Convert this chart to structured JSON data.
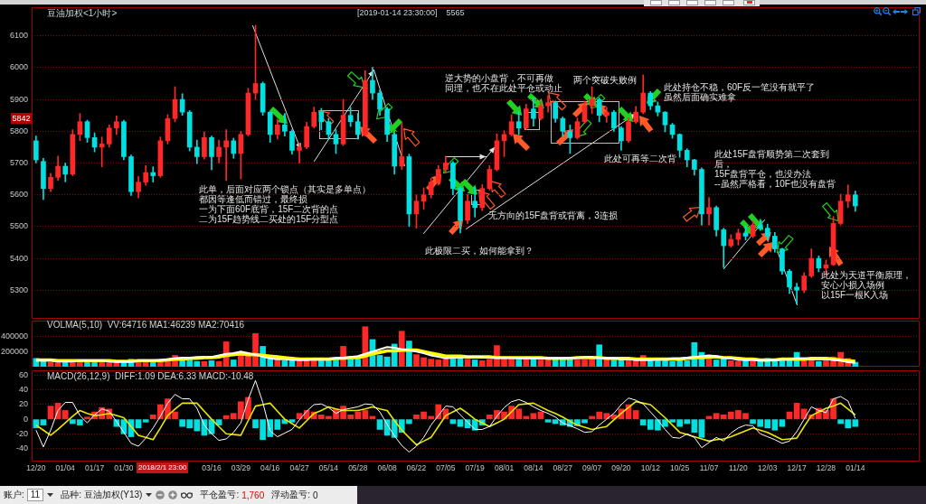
{
  "chart_data": [
    {
      "type": "candlestick",
      "title": "豆油加权<1小时>",
      "subtitle": "[2019-01-14 23:30:00]    5565",
      "categories": [
        null,
        null,
        null,
        null,
        null,
        null,
        null,
        null,
        null,
        null,
        null,
        null,
        null,
        null,
        null,
        null,
        null,
        null,
        null,
        null,
        null,
        null,
        null,
        null,
        null,
        null,
        null,
        null,
        null,
        null,
        null,
        null,
        null,
        null,
        null,
        null,
        null,
        null,
        null,
        null,
        null,
        null,
        null,
        null,
        null,
        null,
        null,
        null,
        null,
        null,
        null,
        null,
        null,
        null,
        null,
        null,
        null,
        null,
        null,
        null,
        null,
        null,
        null,
        null,
        null,
        null,
        null,
        null,
        null,
        null,
        null,
        null,
        null,
        null,
        null,
        null,
        null,
        null,
        null,
        null,
        null,
        null,
        null,
        null,
        null,
        null,
        null,
        null,
        null,
        null,
        null,
        null,
        null,
        null,
        null,
        null,
        null,
        null,
        null,
        null,
        null,
        null,
        null,
        null,
        null,
        null,
        null,
        null,
        null,
        null,
        null,
        null,
        null
      ],
      "ohlc": [
        [
          5770,
          5785,
          5700,
          5710
        ],
        [
          5705,
          5715,
          5585,
          5620
        ],
        [
          5620,
          5668,
          5610,
          5655
        ],
        [
          5655,
          5722,
          5645,
          5690
        ],
        [
          5690,
          5700,
          5641,
          5665
        ],
        [
          5665,
          5805,
          5660,
          5790
        ],
        [
          5790,
          5856,
          5770,
          5830
        ],
        [
          5830,
          5835,
          5765,
          5780
        ],
        [
          5780,
          5795,
          5735,
          5750
        ],
        [
          5750,
          5782,
          5688,
          5760
        ],
        [
          5760,
          5820,
          5750,
          5810
        ],
        [
          5810,
          5848,
          5790,
          5830
        ],
        [
          5830,
          5835,
          5710,
          5720
        ],
        [
          5720,
          5725,
          5598,
          5610
        ],
        [
          5610,
          5658,
          5590,
          5640
        ],
        [
          5640,
          5692,
          5630,
          5670
        ],
        [
          5670,
          5688,
          5640,
          5660
        ],
        [
          5660,
          5782,
          5655,
          5770
        ],
        [
          5770,
          5852,
          5760,
          5840
        ],
        [
          5840,
          5940,
          5830,
          5900
        ],
        [
          5900,
          5918,
          5850,
          5860
        ],
        [
          5860,
          5865,
          5738,
          5750
        ],
        [
          5750,
          5772,
          5698,
          5720
        ],
        [
          5720,
          5798,
          5712,
          5780
        ],
        [
          5780,
          5785,
          5679,
          5720
        ],
        [
          5720,
          5772,
          5700,
          5750
        ],
        [
          5750,
          5805,
          5645,
          5770
        ],
        [
          5770,
          5778,
          5715,
          5730
        ],
        [
          5730,
          5800,
          5650,
          5790
        ],
        [
          5790,
          5935,
          5785,
          5920
        ],
        [
          5920,
          6133,
          5900,
          5950
        ],
        [
          5950,
          5955,
          5850,
          5860
        ],
        [
          5860,
          5862,
          5765,
          5790
        ],
        [
          5790,
          5838,
          5775,
          5820
        ],
        [
          5820,
          5856,
          5785,
          5800
        ],
        [
          5800,
          5805,
          5728,
          5740
        ],
        [
          5740,
          5762,
          5700,
          5750
        ],
        [
          5750,
          5828,
          5745,
          5815
        ],
        [
          5815,
          5876,
          5810,
          5860
        ],
        [
          5860,
          5872,
          5805,
          5830
        ],
        [
          5830,
          5840,
          5775,
          5790
        ],
        [
          5790,
          5805,
          5730,
          5760
        ],
        [
          5760,
          5900,
          5755,
          5850
        ],
        [
          5850,
          5875,
          5815,
          5830
        ],
        [
          5830,
          5856,
          5775,
          5790
        ],
        [
          5790,
          5990,
          5785,
          5960
        ],
        [
          5960,
          6001,
          5900,
          5920
        ],
        [
          5920,
          5930,
          5850,
          5870
        ],
        [
          5870,
          5875,
          5768,
          5790
        ],
        [
          5790,
          5795,
          5665,
          5690
        ],
        [
          5690,
          5825,
          5680,
          5720
        ],
        [
          5720,
          5728,
          5500,
          5540
        ],
        [
          5540,
          5600,
          5495,
          5580
        ],
        [
          5580,
          5622,
          5555,
          5600
        ],
        [
          5600,
          5652,
          5590,
          5640
        ],
        [
          5640,
          5692,
          5630,
          5680
        ],
        [
          5680,
          5722,
          5670,
          5700
        ],
        [
          5700,
          5705,
          5600,
          5620
        ],
        [
          5620,
          5625,
          5480,
          5520
        ],
        [
          5520,
          5602,
          5510,
          5580
        ],
        [
          5580,
          5622,
          5530,
          5560
        ],
        [
          5560,
          5632,
          5550,
          5620
        ],
        [
          5620,
          5692,
          5615,
          5680
        ],
        [
          5680,
          5792,
          5675,
          5770
        ],
        [
          5770,
          5802,
          5720,
          5790
        ],
        [
          5790,
          5852,
          5785,
          5830
        ],
        [
          5830,
          5862,
          5790,
          5810
        ],
        [
          5810,
          5885,
          5805,
          5870
        ],
        [
          5870,
          5905,
          5816,
          5840
        ],
        [
          5840,
          5892,
          5835,
          5880
        ],
        [
          5880,
          5912,
          5860,
          5890
        ],
        [
          5890,
          5895,
          5828,
          5840
        ],
        [
          5840,
          5845,
          5785,
          5800
        ],
        [
          5800,
          5820,
          5730,
          5780
        ],
        [
          5780,
          5842,
          5775,
          5830
        ],
        [
          5830,
          5895,
          5825,
          5880
        ],
        [
          5880,
          5940,
          5855,
          5900
        ],
        [
          5900,
          5905,
          5830,
          5850
        ],
        [
          5850,
          5875,
          5828,
          5860
        ],
        [
          5860,
          5865,
          5800,
          5810
        ],
        [
          5810,
          5815,
          5740,
          5770
        ],
        [
          5770,
          5842,
          5765,
          5830
        ],
        [
          5830,
          5878,
          5825,
          5860
        ],
        [
          5860,
          5977,
          5855,
          5920
        ],
        [
          5920,
          5925,
          5868,
          5880
        ],
        [
          5880,
          5892,
          5848,
          5860
        ],
        [
          5860,
          5862,
          5798,
          5820
        ],
        [
          5820,
          5825,
          5778,
          5790
        ],
        [
          5790,
          5792,
          5718,
          5740
        ],
        [
          5740,
          5745,
          5688,
          5710
        ],
        [
          5710,
          5712,
          5662,
          5680
        ],
        [
          5680,
          5685,
          5505,
          5540
        ],
        [
          5540,
          5592,
          5505,
          5560
        ],
        [
          5560,
          5565,
          5470,
          5490
        ],
        [
          5490,
          5495,
          5371,
          5440
        ],
        [
          5440,
          5475,
          5435,
          5460
        ],
        [
          5460,
          5492,
          5442,
          5480
        ],
        [
          5480,
          5502,
          5458,
          5470
        ],
        [
          5470,
          5518,
          5465,
          5505
        ],
        [
          5505,
          5523,
          5488,
          5495
        ],
        [
          5495,
          5508,
          5458,
          5470
        ],
        [
          5470,
          5482,
          5420,
          5430
        ],
        [
          5430,
          5432,
          5350,
          5360
        ],
        [
          5360,
          5365,
          5290,
          5310
        ],
        [
          5310,
          5322,
          5257,
          5300
        ],
        [
          5300,
          5355,
          5292,
          5345
        ],
        [
          5345,
          5430,
          5340,
          5400
        ],
        [
          5400,
          5408,
          5358,
          5370
        ],
        [
          5370,
          5395,
          5348,
          5380
        ],
        [
          5380,
          5532,
          5378,
          5510
        ],
        [
          5510,
          5602,
          5505,
          5580
        ],
        [
          5580,
          5631,
          5560,
          5600
        ],
        [
          5600,
          5612,
          5548,
          5565
        ]
      ],
      "colors": [
        "#00e0e0",
        "#00e0e0",
        "#ff2828",
        "#ff2828",
        "#00e0e0",
        "#ff2828",
        "#ff2828",
        "#00e0e0",
        "#00e0e0",
        "#ff2828",
        "#ff2828",
        "#ff2828",
        "#00e0e0",
        "#00e0e0",
        "#ff2828",
        "#ff2828",
        "#00e0e0",
        "#ff2828",
        "#ff2828",
        "#ff2828",
        "#00e0e0",
        "#00e0e0",
        "#00e0e0",
        "#ff2828",
        "#00e0e0",
        "#ff2828",
        "#ff2828",
        "#00e0e0",
        "#ff2828",
        "#ff2828",
        "#ff2828",
        "#00e0e0",
        "#00e0e0",
        "#ff2828",
        "#00e0e0",
        "#00e0e0",
        "#ff2828",
        "#ff2828",
        "#ff2828",
        "#00e0e0",
        "#00e0e0",
        "#00e0e0",
        "#ff2828",
        "#00e0e0",
        "#00e0e0",
        "#ff2828",
        "#00e0e0",
        "#00e0e0",
        "#00e0e0",
        "#00e0e0",
        "#ff2828",
        "#00e0e0",
        "#ff2828",
        "#ff2828",
        "#ff2828",
        "#ff2828",
        "#ff2828",
        "#00e0e0",
        "#00e0e0",
        "#ff2828",
        "#00e0e0",
        "#ff2828",
        "#ff2828",
        "#ff2828",
        "#ff2828",
        "#ff2828",
        "#00e0e0",
        "#ff2828",
        "#00e0e0",
        "#ff2828",
        "#ff2828",
        "#00e0e0",
        "#00e0e0",
        "#00e0e0",
        "#ff2828",
        "#ff2828",
        "#ff2828",
        "#00e0e0",
        "#ff2828",
        "#00e0e0",
        "#00e0e0",
        "#ff2828",
        "#ff2828",
        "#ff2828",
        "#00e0e0",
        "#00e0e0",
        "#00e0e0",
        "#00e0e0",
        "#00e0e0",
        "#00e0e0",
        "#00e0e0",
        "#00e0e0",
        "#ff2828",
        "#00e0e0",
        "#00e0e0",
        "#ff2828",
        "#ff2828",
        "#00e0e0",
        "#ff2828",
        "#00e0e0",
        "#00e0e0",
        "#00e0e0",
        "#00e0e0",
        "#00e0e0",
        "#00e0e0",
        "#ff2828",
        "#ff2828",
        "#00e0e0",
        "#ff2828",
        "#ff2828",
        "#ff2828",
        "#ff2828",
        "#00e0e0"
      ],
      "ylim": [
        5210,
        6190
      ],
      "yticks": [
        5300,
        5400,
        5500,
        5600,
        5700,
        5800,
        5900,
        6000,
        6100
      ],
      "grid": "y",
      "tick_labels": "y",
      "annotations": [
        "此单，后面对应两个锁点（其实是多单点）",
        "都因等逢低而错过，最终损",
        "一为下面60F底背，15F二次背的点",
        "二为15F趋势线二买处的15F分型点",
        "逆大势的小盘背，不可再做",
        "同理，也不在此处平仓或动止",
        "两个突破失败例",
        "此处持仓不稳，60F反一笔没有就平了",
        "虽然后面确实难拿",
        "此处可再等二次背",
        "无方向的15F盘背或背离，3连损",
        "此极限二买，如何能拿到？",
        "此处15F盘背顺势第二次套到后，",
        "15F盘背平仓，也没办法",
        "--虽然严格看，10F也没有盘背",
        "此处为天道平衡原理，",
        "安心小损入场例",
        "以15F一根K入场",
        {
          "text": "5842",
          "y": 5842
        }
      ]
    },
    {
      "type": "bar",
      "title": "VOLMA(5,10)  VV:64716 MA1:46239 MA2:70416",
      "categories": [
        null,
        null,
        null,
        null,
        null,
        null,
        null,
        null,
        null,
        null,
        null,
        null,
        null,
        null,
        null,
        null,
        null,
        null,
        null,
        null,
        null,
        null,
        null,
        null,
        null,
        null,
        null,
        null,
        null,
        null,
        null,
        null,
        null,
        null,
        null,
        null,
        null,
        null,
        null,
        null,
        null,
        null,
        null,
        null,
        null,
        null,
        null,
        null,
        null,
        null,
        null,
        null,
        null,
        null,
        null,
        null,
        null,
        null,
        null,
        null,
        null,
        null,
        null,
        null,
        null,
        null,
        null,
        null,
        null,
        null,
        null,
        null,
        null,
        null,
        null,
        null,
        null,
        null,
        null,
        null,
        null,
        null,
        null,
        null,
        null,
        null,
        null,
        null,
        null,
        null,
        null,
        null,
        null,
        null,
        null,
        null,
        null,
        null,
        null,
        null,
        null,
        null,
        null,
        null,
        null,
        null,
        null,
        null,
        null,
        null,
        null,
        null,
        null
      ],
      "series": [
        {
          "values": [
            110000,
            80000,
            60000,
            70000,
            70000,
            90000,
            90000,
            60000,
            60000,
            80000,
            60000,
            70000,
            80000,
            100000,
            70000,
            60000,
            60000,
            80000,
            90000,
            150000,
            110000,
            90000,
            70000,
            70000,
            80000,
            70000,
            330000,
            90000,
            190000,
            160000,
            440000,
            270000,
            120000,
            90000,
            80000,
            100000,
            90000,
            100000,
            90000,
            80000,
            90000,
            120000,
            270000,
            110000,
            100000,
            530000,
            360000,
            150000,
            130000,
            300000,
            470000,
            340000,
            160000,
            120000,
            100000,
            90000,
            100000,
            110000,
            140000,
            100000,
            90000,
            80000,
            100000,
            280000,
            130000,
            110000,
            90000,
            100000,
            120000,
            90000,
            90000,
            100000,
            100000,
            110000,
            90000,
            90000,
            120000,
            290000,
            110000,
            90000,
            100000,
            90000,
            100000,
            150000,
            110000,
            80000,
            80000,
            70000,
            80000,
            80000,
            320000,
            190000,
            110000,
            90000,
            120000,
            80000,
            70000,
            80000,
            70000,
            70000,
            110000,
            80000,
            90000,
            100000,
            190000,
            100000,
            90000,
            70000,
            80000,
            130000,
            190000,
            110000,
            60000
          ],
          "colors": [
            "#00e0e0",
            "#00e0e0",
            "#ff2828",
            "#ff2828",
            "#00e0e0",
            "#ff2828",
            "#ff2828",
            "#00e0e0",
            "#00e0e0",
            "#ff2828",
            "#ff2828",
            "#ff2828",
            "#00e0e0",
            "#00e0e0",
            "#ff2828",
            "#ff2828",
            "#00e0e0",
            "#ff2828",
            "#ff2828",
            "#ff2828",
            "#00e0e0",
            "#00e0e0",
            "#00e0e0",
            "#ff2828",
            "#00e0e0",
            "#ff2828",
            "#ff2828",
            "#00e0e0",
            "#ff2828",
            "#ff2828",
            "#ff2828",
            "#00e0e0",
            "#00e0e0",
            "#ff2828",
            "#00e0e0",
            "#00e0e0",
            "#ff2828",
            "#ff2828",
            "#ff2828",
            "#00e0e0",
            "#00e0e0",
            "#00e0e0",
            "#ff2828",
            "#00e0e0",
            "#00e0e0",
            "#ff2828",
            "#00e0e0",
            "#00e0e0",
            "#00e0e0",
            "#00e0e0",
            "#ff2828",
            "#00e0e0",
            "#ff2828",
            "#ff2828",
            "#ff2828",
            "#ff2828",
            "#ff2828",
            "#00e0e0",
            "#00e0e0",
            "#ff2828",
            "#00e0e0",
            "#ff2828",
            "#ff2828",
            "#ff2828",
            "#ff2828",
            "#ff2828",
            "#00e0e0",
            "#ff2828",
            "#00e0e0",
            "#ff2828",
            "#ff2828",
            "#00e0e0",
            "#00e0e0",
            "#00e0e0",
            "#ff2828",
            "#ff2828",
            "#ff2828",
            "#00e0e0",
            "#ff2828",
            "#00e0e0",
            "#00e0e0",
            "#ff2828",
            "#ff2828",
            "#ff2828",
            "#00e0e0",
            "#00e0e0",
            "#00e0e0",
            "#00e0e0",
            "#00e0e0",
            "#00e0e0",
            "#00e0e0",
            "#00e0e0",
            "#ff2828",
            "#00e0e0",
            "#00e0e0",
            "#ff2828",
            "#ff2828",
            "#00e0e0",
            "#ff2828",
            "#00e0e0",
            "#00e0e0",
            "#00e0e0",
            "#00e0e0",
            "#00e0e0",
            "#00e0e0",
            "#ff2828",
            "#ff2828",
            "#00e0e0",
            "#ff2828",
            "#ff2828",
            "#ff2828",
            "#ff2828",
            "#00e0e0"
          ]
        },
        {
          "type": "line",
          "values": [
            80000,
            80000,
            80000,
            70000,
            70000,
            70000,
            80000,
            80000,
            80000,
            80000,
            70000,
            70000,
            70000,
            70000,
            80000,
            80000,
            80000,
            90000,
            100000,
            110000,
            120000,
            120000,
            130000,
            130000,
            130000,
            150000,
            170000,
            180000,
            200000,
            180000,
            160000,
            130000,
            110000,
            100000,
            100000,
            90000,
            90000,
            90000,
            100000,
            100000,
            100000,
            110000,
            120000,
            130000,
            140000,
            170000,
            200000,
            230000,
            260000,
            250000,
            230000,
            220000,
            200000,
            180000,
            150000,
            130000,
            110000,
            120000,
            120000,
            130000,
            130000,
            130000,
            120000,
            120000,
            120000,
            120000,
            110000,
            110000,
            110000,
            110000,
            110000,
            110000,
            110000,
            120000,
            120000,
            130000,
            130000,
            120000,
            110000,
            110000,
            100000,
            100000,
            90000,
            90000,
            90000,
            100000,
            100000,
            110000,
            110000,
            120000,
            130000,
            140000,
            150000,
            140000,
            120000,
            110000,
            90000,
            90000,
            90000,
            80000,
            80000,
            90000,
            100000,
            100000,
            110000,
            110000,
            100000,
            100000,
            100000,
            90000,
            80000,
            60000,
            50000
          ],
          "color": "#ffffff"
        },
        {
          "type": "line",
          "values": [
            90000,
            90000,
            90000,
            80000,
            80000,
            80000,
            80000,
            80000,
            80000,
            80000,
            80000,
            70000,
            70000,
            70000,
            80000,
            80000,
            80000,
            80000,
            90000,
            100000,
            100000,
            110000,
            110000,
            120000,
            120000,
            130000,
            150000,
            160000,
            170000,
            160000,
            160000,
            150000,
            140000,
            130000,
            120000,
            110000,
            100000,
            100000,
            100000,
            100000,
            100000,
            110000,
            110000,
            120000,
            120000,
            140000,
            170000,
            190000,
            210000,
            210000,
            220000,
            220000,
            220000,
            200000,
            180000,
            160000,
            140000,
            140000,
            140000,
            130000,
            130000,
            130000,
            130000,
            120000,
            120000,
            120000,
            120000,
            120000,
            120000,
            120000,
            110000,
            110000,
            110000,
            110000,
            120000,
            120000,
            120000,
            120000,
            110000,
            110000,
            110000,
            110000,
            100000,
            100000,
            100000,
            100000,
            100000,
            100000,
            100000,
            110000,
            120000,
            120000,
            130000,
            130000,
            120000,
            120000,
            110000,
            100000,
            100000,
            90000,
            90000,
            90000,
            100000,
            100000,
            100000,
            100000,
            110000,
            110000,
            110000,
            100000,
            90000,
            80000,
            70000
          ],
          "color": "#ffff00"
        }
      ],
      "ylim": [
        0,
        610000
      ],
      "yticks": [
        200000,
        400000
      ],
      "grid": "y",
      "tick_labels": "y"
    },
    {
      "type": "bar",
      "title": "MACD(26,12,9)  DIFF:1.09 DEA:6.33 MACD:-10.48",
      "categories": [
        "12/20",
        null,
        null,
        null,
        "01/04",
        null,
        null,
        null,
        "01/17",
        null,
        null,
        null,
        "01/30",
        null,
        null,
        null,
        null,
        null,
        null,
        null,
        null,
        null,
        null,
        null,
        "03/16",
        null,
        null,
        null,
        "03/29",
        null,
        null,
        null,
        "04/16",
        null,
        null,
        null,
        "04/27",
        null,
        null,
        null,
        "05/14",
        null,
        null,
        null,
        "05/28",
        null,
        null,
        null,
        "06/08",
        null,
        null,
        null,
        "06/22",
        null,
        null,
        null,
        "07/05",
        null,
        null,
        null,
        "07/19",
        null,
        null,
        null,
        "08/01",
        null,
        null,
        null,
        "08/14",
        null,
        null,
        null,
        "08/27",
        null,
        null,
        null,
        "09/07",
        null,
        null,
        null,
        "09/20",
        null,
        null,
        null,
        "10/12",
        null,
        null,
        null,
        "10/25",
        null,
        null,
        null,
        "11/07",
        null,
        null,
        null,
        "11/20",
        null,
        null,
        null,
        "12/03",
        null,
        null,
        null,
        "12/17",
        null,
        null,
        null,
        "12/28",
        null,
        null,
        null,
        "01/14"
      ],
      "series": [
        {
          "values": [
            -12,
            -8,
            18,
            22,
            12,
            -6,
            -8,
            3,
            10,
            16,
            14,
            -10,
            -20,
            -24,
            -12,
            -4,
            6,
            20,
            28,
            10,
            -10,
            -12,
            -16,
            -22,
            -20,
            -8,
            5,
            8,
            24,
            30,
            -12,
            -28,
            -24,
            -14,
            -6,
            -4,
            8,
            12,
            10,
            6,
            4,
            14,
            18,
            6,
            10,
            12,
            4,
            -14,
            -22,
            -25,
            -18,
            -6,
            6,
            10,
            4,
            20,
            14,
            -6,
            -10,
            -12,
            -15,
            -8,
            6,
            12,
            10,
            18,
            14,
            4,
            8,
            10,
            -4,
            -6,
            -8,
            -10,
            -9,
            -5,
            4,
            10,
            8,
            6,
            14,
            20,
            12,
            -8,
            -14,
            -15,
            -10,
            -4,
            -10,
            -6,
            -18,
            -25,
            4,
            8,
            6,
            10,
            12,
            8,
            -6,
            -10,
            -12,
            -15,
            -10,
            10,
            22,
            14,
            6,
            15,
            12,
            28,
            -6,
            -12,
            -10
          ],
          "colors": [
            "#00e0e0",
            "#00e0e0",
            "#ff2828",
            "#ff2828",
            "#ff2828",
            "#00e0e0",
            "#00e0e0",
            "#ff2828",
            "#ff2828",
            "#ff2828",
            "#ff2828",
            "#00e0e0",
            "#00e0e0",
            "#00e0e0",
            "#00e0e0",
            "#00e0e0",
            "#ff2828",
            "#ff2828",
            "#ff2828",
            "#ff2828",
            "#00e0e0",
            "#00e0e0",
            "#00e0e0",
            "#00e0e0",
            "#00e0e0",
            "#00e0e0",
            "#ff2828",
            "#ff2828",
            "#ff2828",
            "#ff2828",
            "#00e0e0",
            "#00e0e0",
            "#00e0e0",
            "#00e0e0",
            "#00e0e0",
            "#00e0e0",
            "#ff2828",
            "#ff2828",
            "#ff2828",
            "#ff2828",
            "#ff2828",
            "#ff2828",
            "#ff2828",
            "#ff2828",
            "#ff2828",
            "#ff2828",
            "#ff2828",
            "#00e0e0",
            "#00e0e0",
            "#00e0e0",
            "#00e0e0",
            "#00e0e0",
            "#ff2828",
            "#ff2828",
            "#ff2828",
            "#ff2828",
            "#ff2828",
            "#00e0e0",
            "#00e0e0",
            "#00e0e0",
            "#00e0e0",
            "#00e0e0",
            "#ff2828",
            "#ff2828",
            "#ff2828",
            "#ff2828",
            "#ff2828",
            "#ff2828",
            "#ff2828",
            "#ff2828",
            "#00e0e0",
            "#00e0e0",
            "#00e0e0",
            "#00e0e0",
            "#00e0e0",
            "#00e0e0",
            "#ff2828",
            "#ff2828",
            "#ff2828",
            "#ff2828",
            "#ff2828",
            "#ff2828",
            "#ff2828",
            "#00e0e0",
            "#00e0e0",
            "#00e0e0",
            "#00e0e0",
            "#00e0e0",
            "#00e0e0",
            "#00e0e0",
            "#00e0e0",
            "#00e0e0",
            "#ff2828",
            "#ff2828",
            "#ff2828",
            "#ff2828",
            "#ff2828",
            "#ff2828",
            "#00e0e0",
            "#00e0e0",
            "#00e0e0",
            "#00e0e0",
            "#00e0e0",
            "#ff2828",
            "#ff2828",
            "#ff2828",
            "#ff2828",
            "#ff2828",
            "#ff2828",
            "#ff2828",
            "#00e0e0",
            "#00e0e0",
            "#00e0e0"
          ]
        },
        {
          "type": "line",
          "values": [
            -15,
            -38,
            -15,
            12,
            23,
            23,
            5,
            -5,
            6,
            14,
            11,
            -3,
            -18,
            -33,
            -37,
            -26,
            -12,
            4,
            22,
            34,
            28,
            28,
            15,
            -8,
            -20,
            -29,
            -27,
            -18,
            -5,
            27,
            53,
            23,
            -16,
            -24,
            -19,
            -14,
            -1,
            11,
            20,
            21,
            16,
            8,
            13,
            15,
            17,
            21,
            20,
            10,
            -7,
            -23,
            -36,
            -45,
            -37,
            -25,
            -8,
            5,
            18,
            17,
            6,
            -4,
            -14,
            -14,
            -10,
            4,
            16,
            24,
            27,
            23,
            17,
            12,
            8,
            3,
            -5,
            -9,
            -13,
            -18,
            -17,
            -8,
            0,
            8,
            20,
            29,
            26,
            21,
            10,
            -1,
            -14,
            -25,
            -26,
            -20,
            -25,
            -39,
            -32,
            -25,
            -30,
            -19,
            -12,
            -8,
            -9,
            -20,
            -24,
            -28,
            -33,
            -30,
            -17,
            0,
            17,
            12,
            9,
            28,
            31,
            25,
            1
          ],
          "color": "#ffffff"
        },
        {
          "type": "line",
          "values": [
            -8,
            -15,
            -22,
            -14,
            -5,
            4,
            12,
            8,
            5,
            6,
            8,
            5,
            2,
            -10,
            -22,
            -25,
            -28,
            -12,
            5,
            14,
            22,
            22,
            22,
            11,
            0,
            -10,
            -20,
            -21,
            -22,
            -2,
            18,
            20,
            22,
            11,
            0,
            -6,
            -12,
            -2,
            8,
            12,
            17,
            14,
            12,
            12,
            12,
            14,
            17,
            14,
            12,
            -2,
            -15,
            -25,
            -35,
            -30,
            -25,
            -10,
            5,
            10,
            15,
            8,
            0,
            -5,
            -10,
            -5,
            0,
            10,
            20,
            21,
            22,
            17,
            12,
            8,
            3,
            -3,
            -8,
            -11,
            -14,
            -12,
            -10,
            -1,
            8,
            16,
            24,
            22,
            20,
            11,
            2,
            -8,
            -18,
            -21,
            -24,
            -27,
            -30,
            -28,
            -27,
            -24,
            -20,
            -16,
            -12,
            -15,
            -18,
            -23,
            -28,
            -27,
            -26,
            -10,
            5,
            10,
            15,
            18,
            22,
            14,
            6
          ],
          "color": "#e8e800"
        }
      ],
      "ylim": [
        -58,
        67
      ],
      "yticks": [
        -40,
        -20,
        0,
        20,
        40,
        60
      ],
      "grid": "y",
      "annotations": [
        "2018/2/1 23:00"
      ]
    },
    {
      "type": "other",
      "annotations": [
        "账户:",
        "11",
        "品种:",
        "豆油加权(Y13)",
        "平仓盈亏:",
        "1,760",
        "浮动盈亏:",
        "0"
      ]
    }
  ]
}
